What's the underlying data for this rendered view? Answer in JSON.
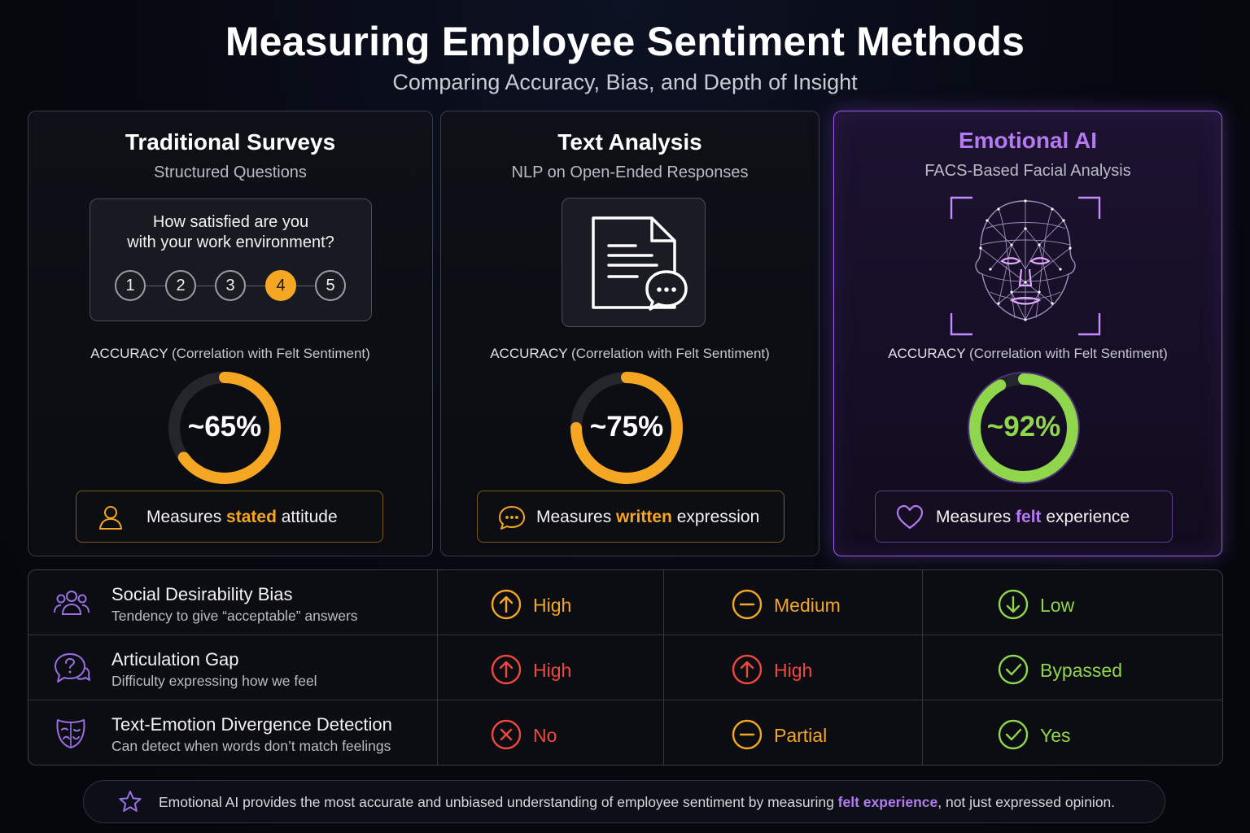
{
  "title": "Measuring Employee Sentiment Methods",
  "subtitle": "Comparing Accuracy, Bias, and Depth of Insight",
  "accuracy_label_strong": "ACCURACY",
  "accuracy_label_rest": "(Correlation with Felt Sentiment)",
  "methods": [
    {
      "title": "Traditional Surveys",
      "subtitle": "Structured Questions",
      "question": "How satisfied are you\nwith your work environment?",
      "scale": [
        "1",
        "2",
        "3",
        "4",
        "5"
      ],
      "selected": "4",
      "accuracy": 65,
      "accuracy_text": "~65%",
      "ring_color": "#f5a623",
      "measure_prefix": "Measures ",
      "measure_highlight": "stated",
      "measure_suffix": " attitude",
      "measure_icon": "person-icon"
    },
    {
      "title": "Text Analysis",
      "subtitle": "NLP on Open-Ended Responses",
      "accuracy": 75,
      "accuracy_text": "~75%",
      "ring_color": "#f5a623",
      "measure_prefix": "Measures ",
      "measure_highlight": "written",
      "measure_suffix": " expression",
      "measure_icon": "chat-bubble-icon",
      "illustration_icon": "document-chat-icon"
    },
    {
      "title": "Emotional AI",
      "subtitle": "FACS-Based Facial Analysis",
      "accuracy": 92,
      "accuracy_text": "~92%",
      "ring_color": "#8fd64d",
      "measure_prefix": "Measures ",
      "measure_highlight": "felt",
      "measure_suffix": " experience",
      "measure_icon": "heart-icon",
      "illustration_icon": "face-mesh-icon"
    }
  ],
  "comparison_rows": [
    {
      "title": "Social Desirability Bias",
      "subtitle": "Tendency to give “acceptable” answers",
      "icon": "people-group-icon",
      "cells": [
        {
          "text": "High",
          "icon": "arrow-up-circle-icon",
          "color": "#f5a623"
        },
        {
          "text": "Medium",
          "icon": "minus-circle-icon",
          "color": "#f5a623"
        },
        {
          "text": "Low",
          "icon": "arrow-down-circle-icon",
          "color": "#8fd64d"
        }
      ]
    },
    {
      "title": "Articulation Gap",
      "subtitle": "Difficulty expressing how we feel",
      "icon": "question-bubble-icon",
      "cells": [
        {
          "text": "High",
          "icon": "arrow-up-circle-icon",
          "color": "#f0483e"
        },
        {
          "text": "High",
          "icon": "arrow-up-circle-icon",
          "color": "#f0483e"
        },
        {
          "text": "Bypassed",
          "icon": "check-circle-icon",
          "color": "#8fd64d"
        }
      ]
    },
    {
      "title": "Text-Emotion Divergence Detection",
      "subtitle": "Can detect when words don’t match feelings",
      "icon": "theater-mask-icon",
      "cells": [
        {
          "text": "No",
          "icon": "x-circle-icon",
          "color": "#f0483e"
        },
        {
          "text": "Partial",
          "icon": "minus-circle-icon",
          "color": "#f5a623"
        },
        {
          "text": "Yes",
          "icon": "check-circle-icon",
          "color": "#8fd64d"
        }
      ]
    }
  ],
  "footer": {
    "icon": "star-icon",
    "text_before": "Emotional AI provides the most accurate and unbiased understanding of employee sentiment by measuring ",
    "highlight": "felt experience",
    "text_after": ", not just expressed opinion."
  },
  "colors": {
    "orange": "#f5a623",
    "green": "#8fd64d",
    "purple": "#b57af2",
    "red": "#f0483e"
  }
}
